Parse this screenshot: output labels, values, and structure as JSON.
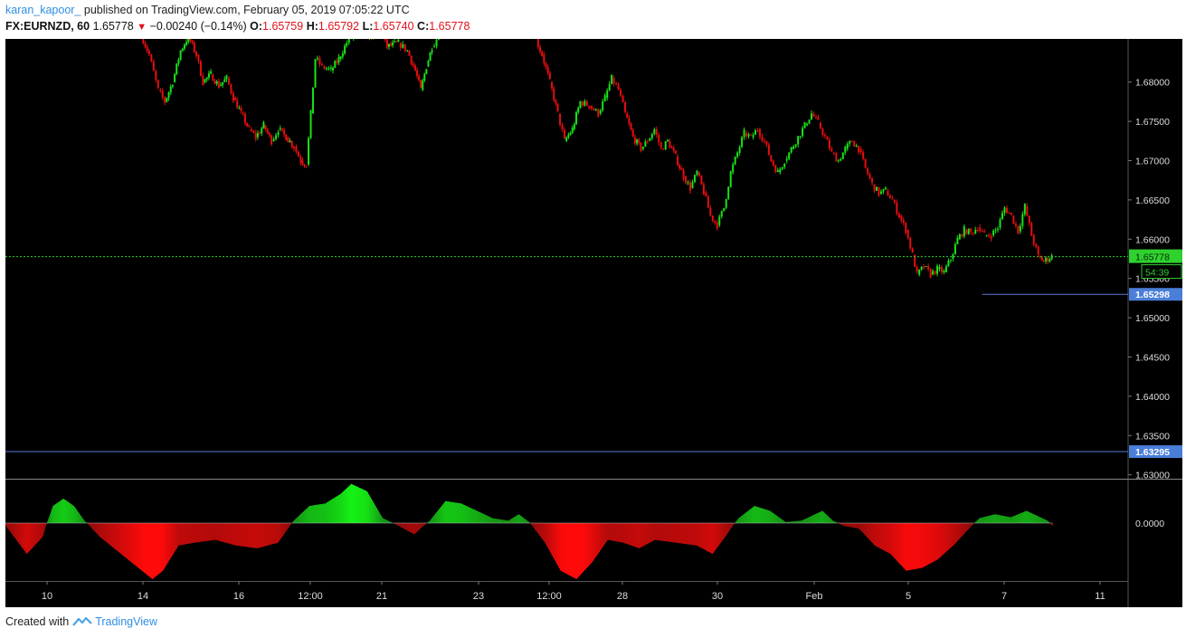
{
  "header": {
    "author": "karan_kapoor_",
    "published_text": "published on TradingView.com, February 05, 2019 07:05:22 UTC",
    "symbol": "FX:EURNZD, 60",
    "last": "1.65778",
    "change": "−0.00240 (−0.14%)",
    "o_label": "O:",
    "o_value": "1.65759",
    "h_label": "H:",
    "h_value": "1.65792",
    "l_label": "L:",
    "l_value": "1.65740",
    "c_label": "C:",
    "c_value": "1.65778"
  },
  "footer": {
    "created_with": "Created with",
    "brand": "TradingView",
    "brand_icon": "tradingview-logo-icon"
  },
  "chart_data": {
    "type": "candlestick",
    "symbol": "FX:EURNZD",
    "interval": "60",
    "colors": {
      "up": "#19e319",
      "down": "#e60e0e",
      "background": "#000000",
      "grid": "none",
      "price_line": "#2bd12b",
      "hline": "#5a7bd6"
    },
    "y_axis": {
      "range": [
        1.6295,
        1.6855
      ],
      "ticks": [
        "1.68000",
        "1.67500",
        "1.67000",
        "1.66500",
        "1.66000",
        "1.65500",
        "1.65000",
        "1.64500",
        "1.64000",
        "1.63500",
        "1.63000"
      ]
    },
    "x_axis": {
      "ticks": [
        "10",
        "14",
        "16",
        "12:00",
        "21",
        "23",
        "12:00",
        "28",
        "30",
        "Feb",
        "5",
        "7",
        "11"
      ]
    },
    "series_points": [
      [
        0.121,
        1.686
      ],
      [
        0.128,
        1.6835
      ],
      [
        0.136,
        1.679
      ],
      [
        0.142,
        1.6775
      ],
      [
        0.149,
        1.68
      ],
      [
        0.156,
        1.684
      ],
      [
        0.163,
        1.6858
      ],
      [
        0.17,
        1.6835
      ],
      [
        0.176,
        1.68
      ],
      [
        0.183,
        1.681
      ],
      [
        0.19,
        1.6795
      ],
      [
        0.197,
        1.6805
      ],
      [
        0.203,
        1.678
      ],
      [
        0.21,
        1.676
      ],
      [
        0.217,
        1.674
      ],
      [
        0.223,
        1.673
      ],
      [
        0.23,
        1.6745
      ],
      [
        0.237,
        1.6725
      ],
      [
        0.243,
        1.674
      ],
      [
        0.25,
        1.673
      ],
      [
        0.257,
        1.6718
      ],
      [
        0.263,
        1.67
      ],
      [
        0.268,
        1.6695
      ],
      [
        0.272,
        1.676
      ],
      [
        0.276,
        1.683
      ],
      [
        0.282,
        1.682
      ],
      [
        0.29,
        1.6815
      ],
      [
        0.297,
        1.683
      ],
      [
        0.304,
        1.685
      ],
      [
        0.31,
        1.686
      ],
      [
        0.335,
        1.686
      ],
      [
        0.34,
        1.6845
      ],
      [
        0.35,
        1.685
      ],
      [
        0.358,
        1.684
      ],
      [
        0.365,
        1.6815
      ],
      [
        0.37,
        1.679
      ],
      [
        0.375,
        1.682
      ],
      [
        0.38,
        1.6845
      ],
      [
        0.386,
        1.686
      ],
      [
        0.471,
        1.686
      ],
      [
        0.478,
        1.6835
      ],
      [
        0.485,
        1.68
      ],
      [
        0.492,
        1.676
      ],
      [
        0.498,
        1.6725
      ],
      [
        0.505,
        1.674
      ],
      [
        0.512,
        1.6775
      ],
      [
        0.52,
        1.677
      ],
      [
        0.528,
        1.676
      ],
      [
        0.534,
        1.678
      ],
      [
        0.54,
        1.6805
      ],
      [
        0.546,
        1.679
      ],
      [
        0.552,
        1.676
      ],
      [
        0.559,
        1.673
      ],
      [
        0.566,
        1.6715
      ],
      [
        0.572,
        1.6725
      ],
      [
        0.578,
        1.674
      ],
      [
        0.584,
        1.6715
      ],
      [
        0.59,
        1.6725
      ],
      [
        0.597,
        1.6705
      ],
      [
        0.604,
        1.668
      ],
      [
        0.61,
        1.6665
      ],
      [
        0.616,
        1.6685
      ],
      [
        0.622,
        1.666
      ],
      [
        0.628,
        1.663
      ],
      [
        0.634,
        1.6618
      ],
      [
        0.64,
        1.664
      ],
      [
        0.646,
        1.6685
      ],
      [
        0.652,
        1.671
      ],
      [
        0.658,
        1.6735
      ],
      [
        0.664,
        1.673
      ],
      [
        0.67,
        1.674
      ],
      [
        0.676,
        1.6725
      ],
      [
        0.682,
        1.67
      ],
      [
        0.688,
        1.6685
      ],
      [
        0.694,
        1.67
      ],
      [
        0.7,
        1.6715
      ],
      [
        0.706,
        1.673
      ],
      [
        0.712,
        1.6745
      ],
      [
        0.718,
        1.676
      ],
      [
        0.724,
        1.6748
      ],
      [
        0.73,
        1.673
      ],
      [
        0.736,
        1.671
      ],
      [
        0.742,
        1.67
      ],
      [
        0.748,
        1.6715
      ],
      [
        0.754,
        1.6725
      ],
      [
        0.76,
        1.6715
      ],
      [
        0.766,
        1.669
      ],
      [
        0.772,
        1.667
      ],
      [
        0.778,
        1.6658
      ],
      [
        0.784,
        1.6662
      ],
      [
        0.79,
        1.665
      ],
      [
        0.796,
        1.663
      ],
      [
        0.802,
        1.6612
      ],
      [
        0.808,
        1.658
      ],
      [
        0.812,
        1.6555
      ],
      [
        0.818,
        1.6565
      ],
      [
        0.824,
        1.6555
      ],
      [
        0.83,
        1.6562
      ],
      [
        0.836,
        1.6558
      ],
      [
        0.842,
        1.6575
      ],
      [
        0.848,
        1.66
      ],
      [
        0.854,
        1.6612
      ],
      [
        0.86,
        1.6608
      ],
      [
        0.866,
        1.6615
      ],
      [
        0.872,
        1.6605
      ],
      [
        0.878,
        1.6605
      ],
      [
        0.884,
        1.6615
      ],
      [
        0.89,
        1.664
      ],
      [
        0.896,
        1.663
      ],
      [
        0.902,
        1.661
      ],
      [
        0.908,
        1.6642
      ],
      [
        0.914,
        1.6605
      ],
      [
        0.92,
        1.6578
      ],
      [
        0.925,
        1.6572
      ],
      [
        0.932,
        1.6578
      ]
    ],
    "last_price": 1.65778,
    "last_price_label": "1.65778",
    "countdown_label": "54:39",
    "hlines": [
      {
        "price": 1.65298,
        "label": "1.65298",
        "x_start": 0.87
      },
      {
        "price": 1.63295,
        "label": "1.63295",
        "x_start": 0.0
      }
    ],
    "oscillator": {
      "zero_label": "0.0000",
      "range": [
        -1.0,
        0.85
      ],
      "points": [
        [
          0.0,
          -0.05
        ],
        [
          0.02,
          -0.55
        ],
        [
          0.035,
          -0.25
        ],
        [
          0.045,
          0.35
        ],
        [
          0.055,
          0.5
        ],
        [
          0.065,
          0.35
        ],
        [
          0.075,
          0.05
        ],
        [
          0.09,
          -0.25
        ],
        [
          0.11,
          -0.55
        ],
        [
          0.13,
          -0.85
        ],
        [
          0.14,
          -1.0
        ],
        [
          0.15,
          -0.85
        ],
        [
          0.165,
          -0.4
        ],
        [
          0.18,
          -0.35
        ],
        [
          0.2,
          -0.3
        ],
        [
          0.22,
          -0.4
        ],
        [
          0.24,
          -0.45
        ],
        [
          0.26,
          -0.35
        ],
        [
          0.275,
          0.05
        ],
        [
          0.29,
          0.35
        ],
        [
          0.305,
          0.4
        ],
        [
          0.32,
          0.6
        ],
        [
          0.33,
          0.8
        ],
        [
          0.345,
          0.65
        ],
        [
          0.36,
          0.1
        ],
        [
          0.375,
          -0.05
        ],
        [
          0.39,
          -0.2
        ],
        [
          0.405,
          0.05
        ],
        [
          0.42,
          0.45
        ],
        [
          0.435,
          0.4
        ],
        [
          0.45,
          0.25
        ],
        [
          0.465,
          0.1
        ],
        [
          0.48,
          0.05
        ],
        [
          0.49,
          0.18
        ],
        [
          0.5,
          0.02
        ],
        [
          0.515,
          -0.35
        ],
        [
          0.53,
          -0.85
        ],
        [
          0.545,
          -1.0
        ],
        [
          0.56,
          -0.7
        ],
        [
          0.575,
          -0.3
        ],
        [
          0.59,
          -0.35
        ],
        [
          0.605,
          -0.45
        ],
        [
          0.62,
          -0.3
        ],
        [
          0.64,
          -0.35
        ],
        [
          0.66,
          -0.4
        ],
        [
          0.675,
          -0.55
        ],
        [
          0.685,
          -0.3
        ],
        [
          0.7,
          0.1
        ],
        [
          0.715,
          0.35
        ],
        [
          0.73,
          0.25
        ],
        [
          0.745,
          0.02
        ],
        [
          0.76,
          0.05
        ],
        [
          0.78,
          0.25
        ],
        [
          0.79,
          0.05
        ],
        [
          0.8,
          -0.05
        ],
        [
          0.815,
          -0.1
        ],
        [
          0.83,
          -0.4
        ],
        [
          0.845,
          -0.55
        ],
        [
          0.86,
          -0.85
        ],
        [
          0.875,
          -0.8
        ],
        [
          0.89,
          -0.65
        ],
        [
          0.905,
          -0.4
        ],
        [
          0.915,
          -0.2
        ],
        [
          0.93,
          0.1
        ],
        [
          0.945,
          0.18
        ],
        [
          0.96,
          0.12
        ],
        [
          0.975,
          0.25
        ],
        [
          0.985,
          0.15
        ],
        [
          0.995,
          0.05
        ],
        [
          1.0,
          -0.05
        ]
      ]
    }
  }
}
